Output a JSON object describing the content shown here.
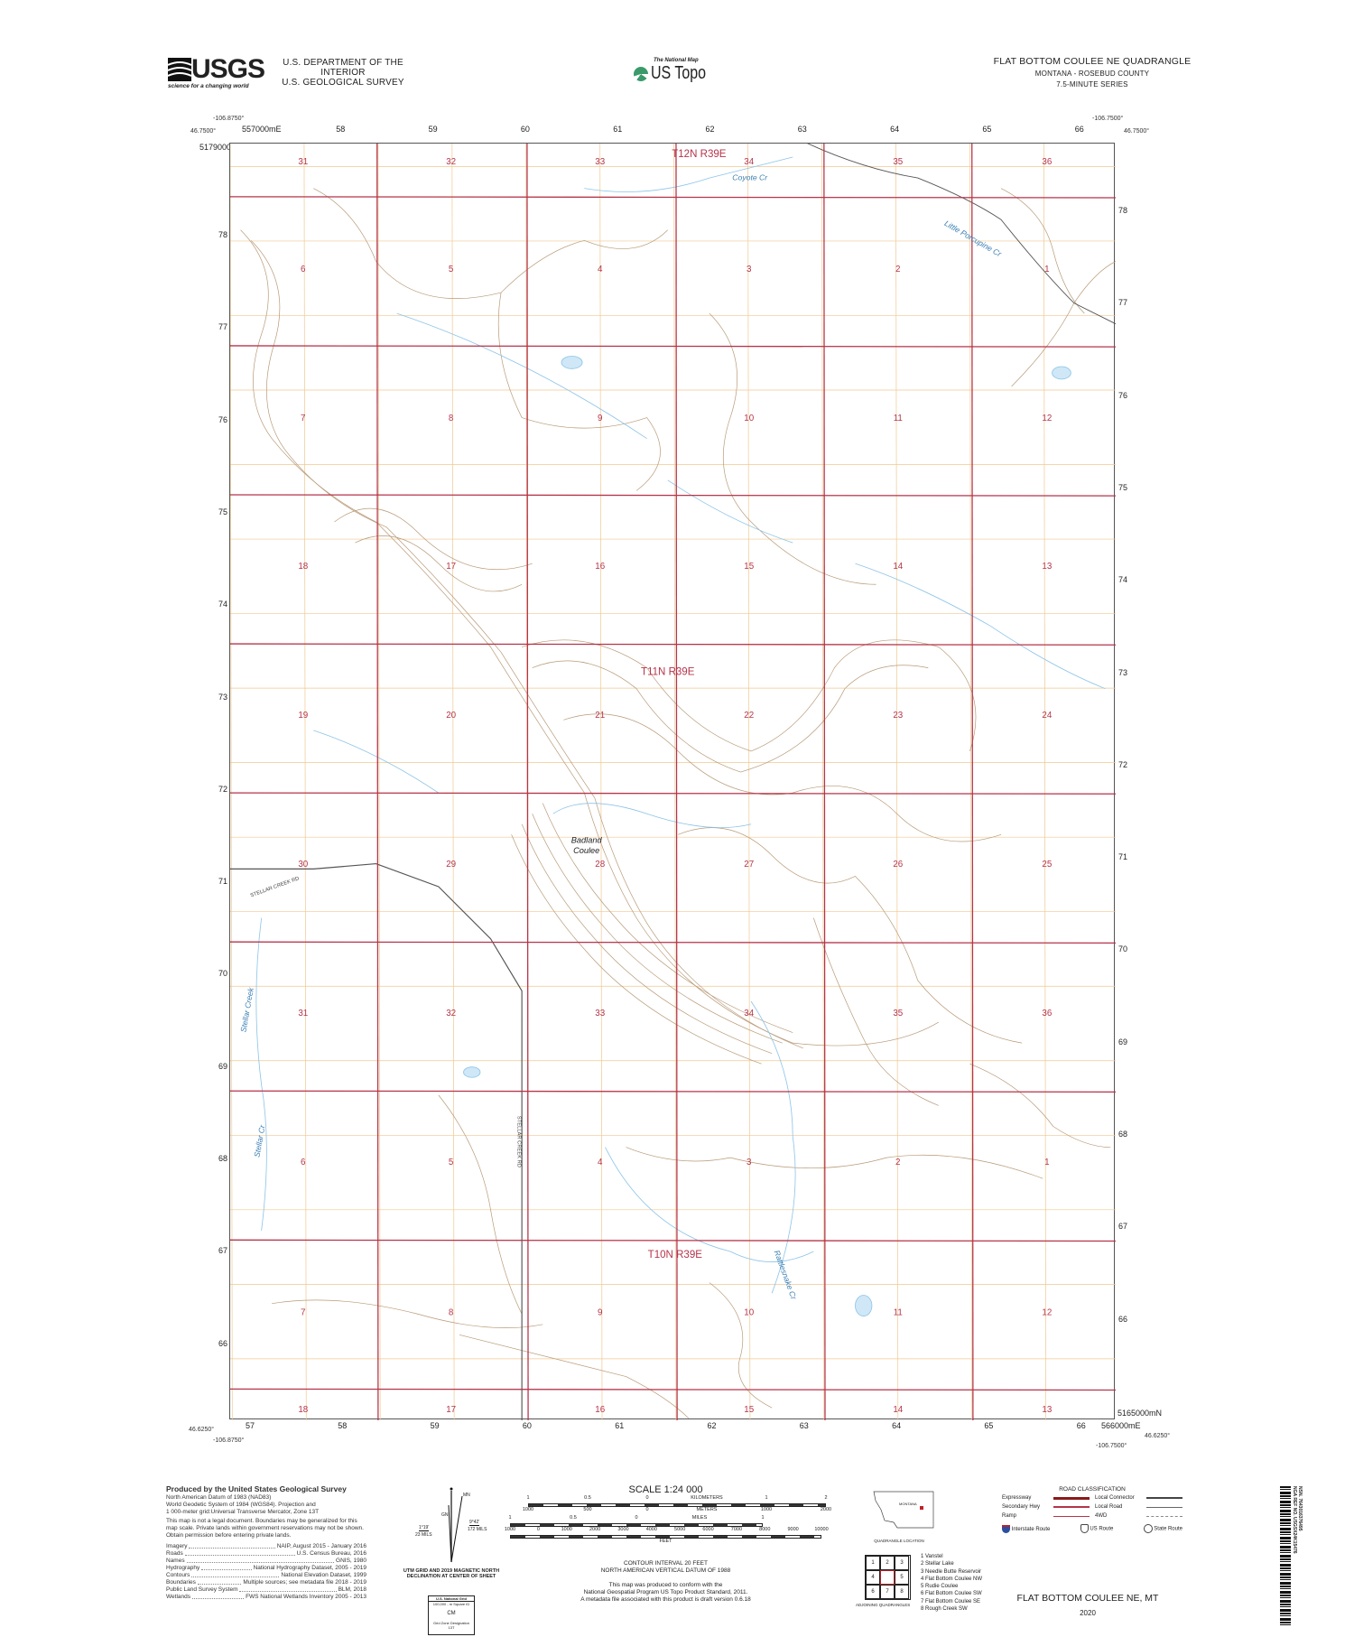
{
  "header": {
    "agency_logo": "USGS",
    "agency_tagline": "science for a changing world",
    "dept_line1": "U.S. DEPARTMENT OF THE INTERIOR",
    "dept_line2": "U.S. GEOLOGICAL SURVEY",
    "product_logo_small": "The National Map",
    "product_logo": "US Topo",
    "quad_title": "FLAT BOTTOM COULEE NE QUADRANGLE",
    "state_county": "MONTANA - ROSEBUD COUNTY",
    "series": "7.5-MINUTE SERIES"
  },
  "corners": {
    "top_left_lon": "-106.8750°",
    "top_left_lat": "46.7500°",
    "top_right_lon": "-106.7500°",
    "top_right_lat": "46.7500°",
    "bottom_left_lat": "46.6250°",
    "bottom_left_lon": "-106.8750°",
    "bottom_right_lat": "46.6250°",
    "bottom_right_lon": "-106.7500°",
    "utm_top_easting": "557000mE",
    "utm_top_northing": "5179000mN",
    "utm_bottom_northing": "5165000mN",
    "utm_bottom_easting": "566000mE"
  },
  "utm_easting_labels": [
    "57",
    "58",
    "59",
    "60",
    "61",
    "62",
    "63",
    "64",
    "65",
    "66"
  ],
  "utm_northing_labels": [
    "78",
    "77",
    "76",
    "75",
    "74",
    "73",
    "72",
    "71",
    "70",
    "69",
    "68",
    "67",
    "66"
  ],
  "sections": [
    [
      "31",
      "32",
      "33",
      "34",
      "35",
      "36"
    ],
    [
      "6",
      "5",
      "4",
      "3",
      "2",
      "1"
    ],
    [
      "7",
      "8",
      "9",
      "10",
      "11",
      "12"
    ],
    [
      "18",
      "17",
      "16",
      "15",
      "14",
      "13"
    ],
    [
      "19",
      "20",
      "21",
      "22",
      "23",
      "24"
    ],
    [
      "30",
      "29",
      "28",
      "27",
      "26",
      "25"
    ],
    [
      "31",
      "32",
      "33",
      "34",
      "35",
      "36"
    ],
    [
      "6",
      "5",
      "4",
      "3",
      "2",
      "1"
    ],
    [
      "7",
      "8",
      "9",
      "10",
      "11",
      "12"
    ],
    [
      "18",
      "17",
      "16",
      "15",
      "14",
      "13"
    ]
  ],
  "townships": [
    "T12N R39E",
    "T11N R39E",
    "T10N R39E"
  ],
  "place_names": {
    "coyote_cr": "Coyote Cr",
    "little_porcupine": "Little Porcupine Cr",
    "badland_coulee_1": "Badland",
    "badland_coulee_2": "Coulee",
    "stellar_creek_rd": "STELLAR CREEK RD",
    "stellar_creek_rd_2": "STELLAR CREEK RD",
    "stellar_creek": "Stellar Creek",
    "stellar_cr": "Stellar Cr",
    "rattlesnake_cr": "Rattlesnake Cr"
  },
  "colors": {
    "section_line": "#b5344a",
    "contour": "#b89a78",
    "water": "#8cc4e8",
    "grid_orange": "#f0c890",
    "road": "#555555"
  },
  "footer": {
    "produced_title": "Produced by the United States Geological Survey",
    "datum_lines": [
      "North American Datum of 1983 (NAD83)",
      "World Geodetic System of 1984 (WGS84). Projection and",
      "1 000-meter grid:Universal Transverse Mercator, Zone 13T"
    ],
    "disclaimer": "This map is not a legal document. Boundaries may be generalized for this map scale. Private lands within government reservations may not be shown. Obtain permission before entering private lands.",
    "sources": [
      {
        "name": "Imagery",
        "source": "NAIP, August 2015 - January 2016"
      },
      {
        "name": "Roads",
        "source": "U.S. Census Bureau, 2016"
      },
      {
        "name": "Names",
        "source": "GNIS, 1980"
      },
      {
        "name": "Hydrography",
        "source": "National Hydrography Dataset, 2005 - 2019"
      },
      {
        "name": "Contours",
        "source": "National Elevation Dataset, 1999"
      },
      {
        "name": "Boundaries",
        "source": "Multiple sources; see metadata file 2018 - 2019"
      },
      {
        "name": "Public Land Survey System",
        "source": "BLM, 2018"
      },
      {
        "name": "Wetlands",
        "source": "FWS National Wetlands Inventory 2005 - 2013"
      }
    ],
    "declination": {
      "mn": "MN",
      "gn": "GN",
      "gn_angle": "1°19'",
      "gn_mils": "23 MILS",
      "mn_angle": "9°42'",
      "mn_mils": "172 MILS",
      "caption1": "UTM GRID AND 2019 MAGNETIC NORTH",
      "caption2": "DECLINATION AT CENTER OF SHEET"
    },
    "national_grid": {
      "title": "U.S. National Grid",
      "sq_id": "100,000 - m Square ID",
      "code": "CM",
      "gzd_label": "Grid Zone Designation",
      "gzd": "13T"
    },
    "scale": {
      "title": "SCALE 1:24 000",
      "km_labels": [
        "1",
        "0.5",
        "0",
        "KILOMETERS",
        "1",
        "2"
      ],
      "m_labels": [
        "1000",
        "500",
        "0",
        "METERS",
        "1000",
        "2000"
      ],
      "mi_labels": [
        "1",
        "0.5",
        "0",
        "MILES",
        "1"
      ],
      "ft_labels": [
        "1000",
        "0",
        "1000",
        "2000",
        "3000",
        "4000",
        "5000",
        "6000",
        "7000",
        "8000",
        "9000",
        "10000"
      ],
      "ft_unit": "FEET"
    },
    "contour_interval": "CONTOUR INTERVAL 20 FEET",
    "vertical_datum": "NORTH AMERICAN VERTICAL DATUM OF 1988",
    "conform_lines": [
      "This map was produced to conform with the",
      "National Geospatial Program US Topo Product Standard, 2011.",
      "A metadata file associated with this product is draft version 0.6.18"
    ],
    "location_state": "MONTANA",
    "location_caption": "QUADRANGLE LOCATION",
    "adjoining_numbers": [
      "1",
      "2",
      "3",
      "4",
      "",
      "5",
      "6",
      "7",
      "8"
    ],
    "adjoining_list": [
      "1 Vanstel",
      "2 Stellar Lake",
      "3 Needle Butte Reservoir",
      "4 Flat Bottom Coulee NW",
      "5 Rudie Coulee",
      "6 Flat Bottom Coulee SW",
      "7 Flat Bottom Coulee SE",
      "8 Rough Creek SW"
    ],
    "adjoining_caption": "ADJOINING QUADRANGLES",
    "road_class_title": "ROAD CLASSIFICATION",
    "road_classes": [
      "Expressway",
      "Secondary Hwy",
      "Ramp",
      "Local Connector",
      "Local Road",
      "4WD"
    ],
    "route_shields": [
      "Interstate Route",
      "US Route",
      "State Route"
    ],
    "sheet_title": "FLAT BOTTOM COULEE NE,  MT",
    "year": "2020",
    "barcode_text": "NSN. 7643016376495",
    "nga_ref": "NGA REF NO. USGSX24K15476"
  }
}
